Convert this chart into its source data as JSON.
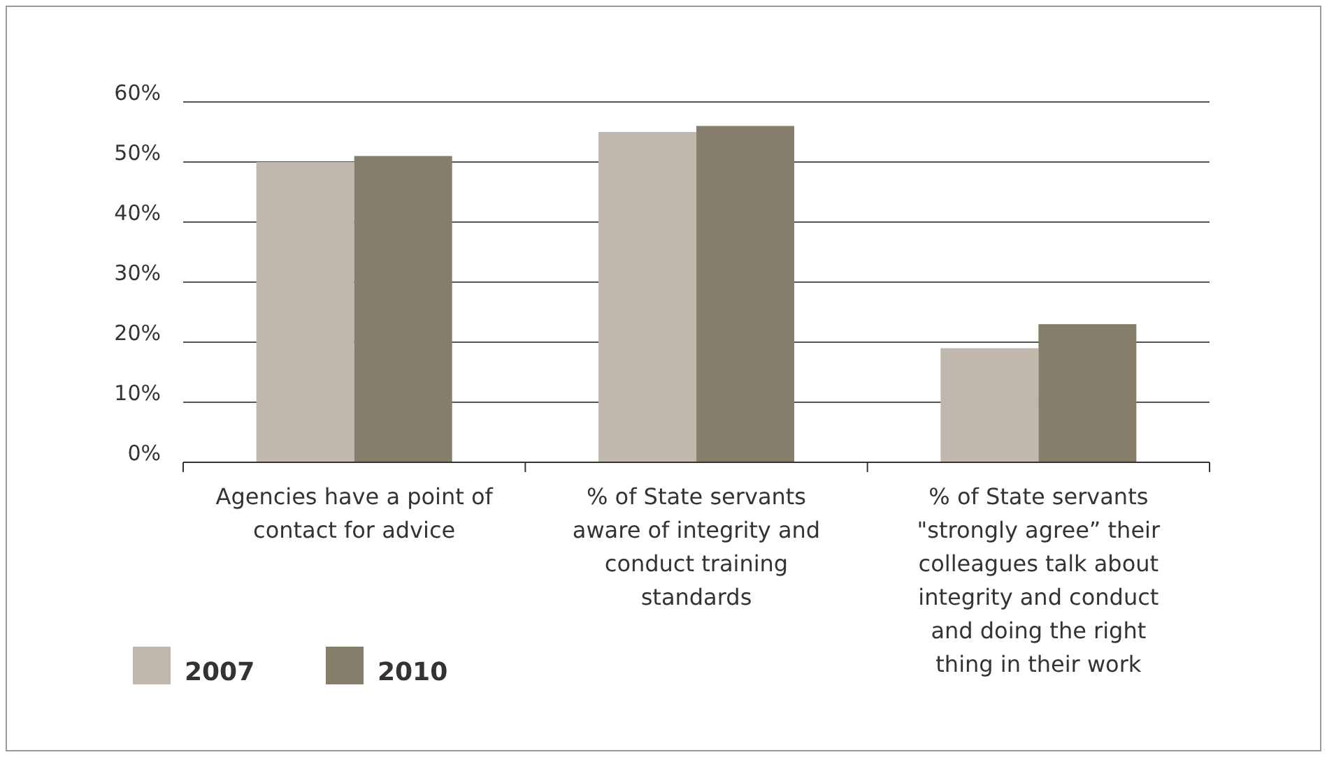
{
  "chart_data": {
    "type": "bar",
    "categories": [
      "Agencies have a point of contact for advice",
      "% of State servants aware of integrity and conduct training standards",
      "% of State servants \"strongly agree” their colleagues talk about integrity and conduct and doing the right thing in their work"
    ],
    "series": [
      {
        "name": "2007",
        "color": "#c0b8ac",
        "values": [
          50,
          55,
          19
        ]
      },
      {
        "name": "2010",
        "color": "#867d6b",
        "values": [
          51,
          56,
          23
        ]
      }
    ],
    "ylim": [
      0,
      60
    ],
    "yticks": [
      {
        "value": 0,
        "label": "0%"
      },
      {
        "value": 10,
        "label": "10%"
      },
      {
        "value": 20,
        "label": "20%"
      },
      {
        "value": 30,
        "label": "30%"
      },
      {
        "value": 40,
        "label": "40%"
      },
      {
        "value": 50,
        "label": "50%"
      },
      {
        "value": 60,
        "label": "60%"
      }
    ],
    "grid": "y",
    "legend": "bottom left"
  }
}
